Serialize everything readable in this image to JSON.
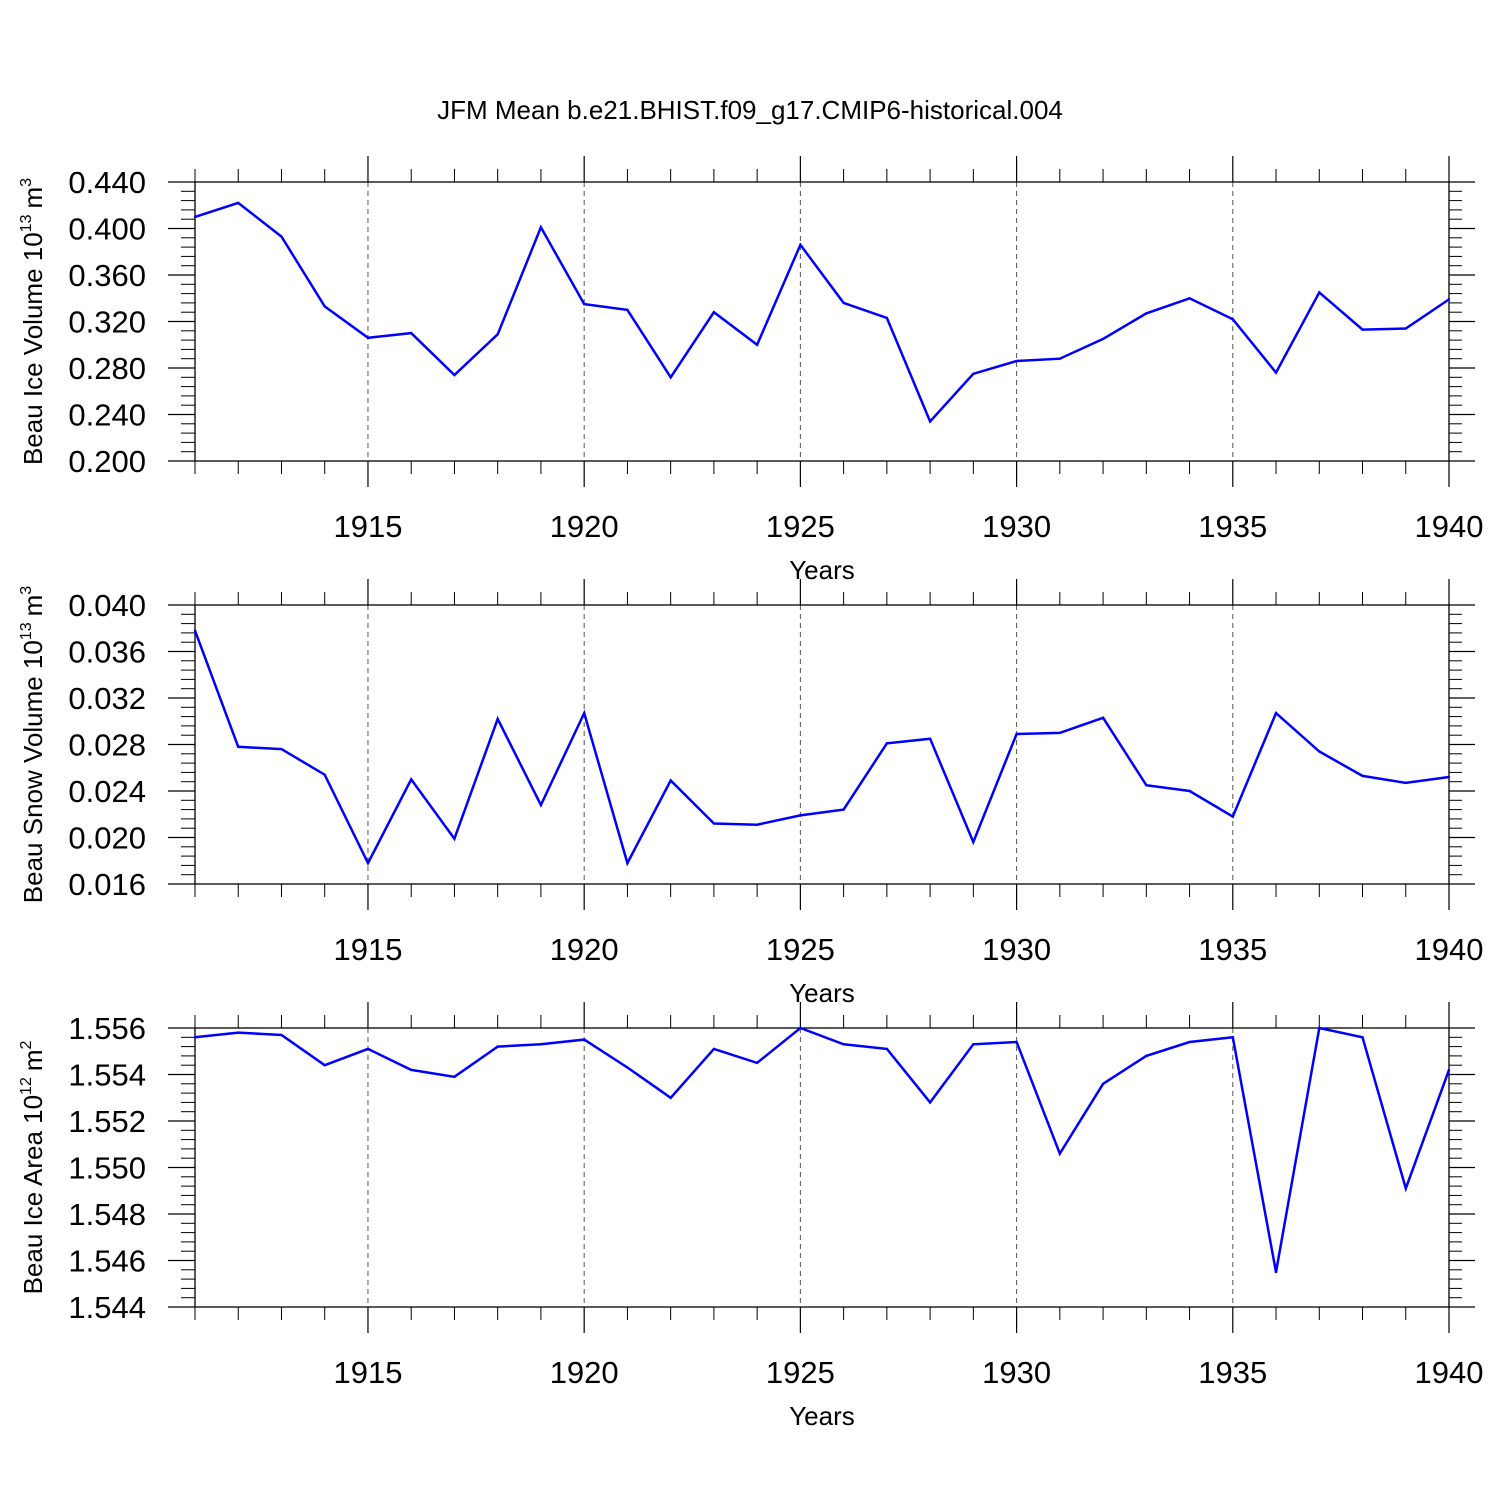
{
  "title": "JFM Mean b.e21.BHIST.f09_g17.CMIP6-historical.004",
  "colors": {
    "series": "#0000ff",
    "axis": "#000000",
    "grid": "#555555",
    "background": "#ffffff"
  },
  "chart_data": [
    {
      "type": "line",
      "ylabel_main": "Beau Ice Volume 10",
      "ylabel_exp": "13",
      "ylabel_unit": "m",
      "ylabel_unit_exp": "3",
      "xlabel": "Years",
      "xlim": [
        1911,
        1940
      ],
      "ylim": [
        0.2,
        0.44
      ],
      "yticks": [
        "0.200",
        "0.240",
        "0.280",
        "0.320",
        "0.360",
        "0.400",
        "0.440"
      ],
      "xticks": [
        "1915",
        "1920",
        "1925",
        "1930",
        "1935",
        "1940"
      ],
      "x": [
        1911,
        1912,
        1913,
        1914,
        1915,
        1916,
        1917,
        1918,
        1919,
        1920,
        1921,
        1922,
        1923,
        1924,
        1925,
        1926,
        1927,
        1928,
        1929,
        1930,
        1931,
        1932,
        1933,
        1934,
        1935,
        1936,
        1937,
        1938,
        1939,
        1940
      ],
      "values": [
        0.41,
        0.422,
        0.393,
        0.333,
        0.306,
        0.31,
        0.274,
        0.309,
        0.401,
        0.335,
        0.33,
        0.272,
        0.328,
        0.3,
        0.386,
        0.336,
        0.323,
        0.234,
        0.275,
        0.286,
        0.288,
        0.305,
        0.327,
        0.34,
        0.322,
        0.276,
        0.345,
        0.313,
        0.314,
        0.339
      ]
    },
    {
      "type": "line",
      "ylabel_main": "Beau Snow Volume 10",
      "ylabel_exp": "13",
      "ylabel_unit": "m",
      "ylabel_unit_exp": "3",
      "xlabel": "Years",
      "xlim": [
        1911,
        1940
      ],
      "ylim": [
        0.016,
        0.04
      ],
      "yticks": [
        "0.016",
        "0.020",
        "0.024",
        "0.028",
        "0.032",
        "0.036",
        "0.040"
      ],
      "xticks": [
        "1915",
        "1920",
        "1925",
        "1930",
        "1935",
        "1940"
      ],
      "x": [
        1911,
        1912,
        1913,
        1914,
        1915,
        1916,
        1917,
        1918,
        1919,
        1920,
        1921,
        1922,
        1923,
        1924,
        1925,
        1926,
        1927,
        1928,
        1929,
        1930,
        1931,
        1932,
        1933,
        1934,
        1935,
        1936,
        1937,
        1938,
        1939,
        1940
      ],
      "values": [
        0.0378,
        0.0278,
        0.0276,
        0.0254,
        0.0178,
        0.025,
        0.0199,
        0.0302,
        0.0228,
        0.0307,
        0.0178,
        0.0249,
        0.0212,
        0.0211,
        0.0219,
        0.0224,
        0.0281,
        0.0285,
        0.0196,
        0.0289,
        0.029,
        0.0303,
        0.0245,
        0.024,
        0.0218,
        0.0307,
        0.0274,
        0.0253,
        0.0247,
        0.0252
      ]
    },
    {
      "type": "line",
      "ylabel_main": "Beau Ice Area 10",
      "ylabel_exp": "12",
      "ylabel_unit": "m",
      "ylabel_unit_exp": "2",
      "xlabel": "Years",
      "xlim": [
        1911,
        1940
      ],
      "ylim": [
        1.544,
        1.556
      ],
      "yticks": [
        "1.544",
        "1.546",
        "1.548",
        "1.550",
        "1.552",
        "1.554",
        "1.556"
      ],
      "xticks": [
        "1915",
        "1920",
        "1925",
        "1930",
        "1935",
        "1940"
      ],
      "x": [
        1911,
        1912,
        1913,
        1914,
        1915,
        1916,
        1917,
        1918,
        1919,
        1920,
        1921,
        1922,
        1923,
        1924,
        1925,
        1926,
        1927,
        1928,
        1929,
        1930,
        1931,
        1932,
        1933,
        1934,
        1935,
        1936,
        1937,
        1938,
        1939,
        1940
      ],
      "values": [
        1.5556,
        1.5558,
        1.5557,
        1.5544,
        1.5551,
        1.5542,
        1.5539,
        1.5552,
        1.5553,
        1.5555,
        1.5543,
        1.553,
        1.5551,
        1.5545,
        1.556,
        1.5553,
        1.5551,
        1.5528,
        1.5553,
        1.5554,
        1.5506,
        1.5536,
        1.5548,
        1.5554,
        1.5556,
        1.5455,
        1.556,
        1.5556,
        1.5491,
        1.5542
      ]
    }
  ]
}
